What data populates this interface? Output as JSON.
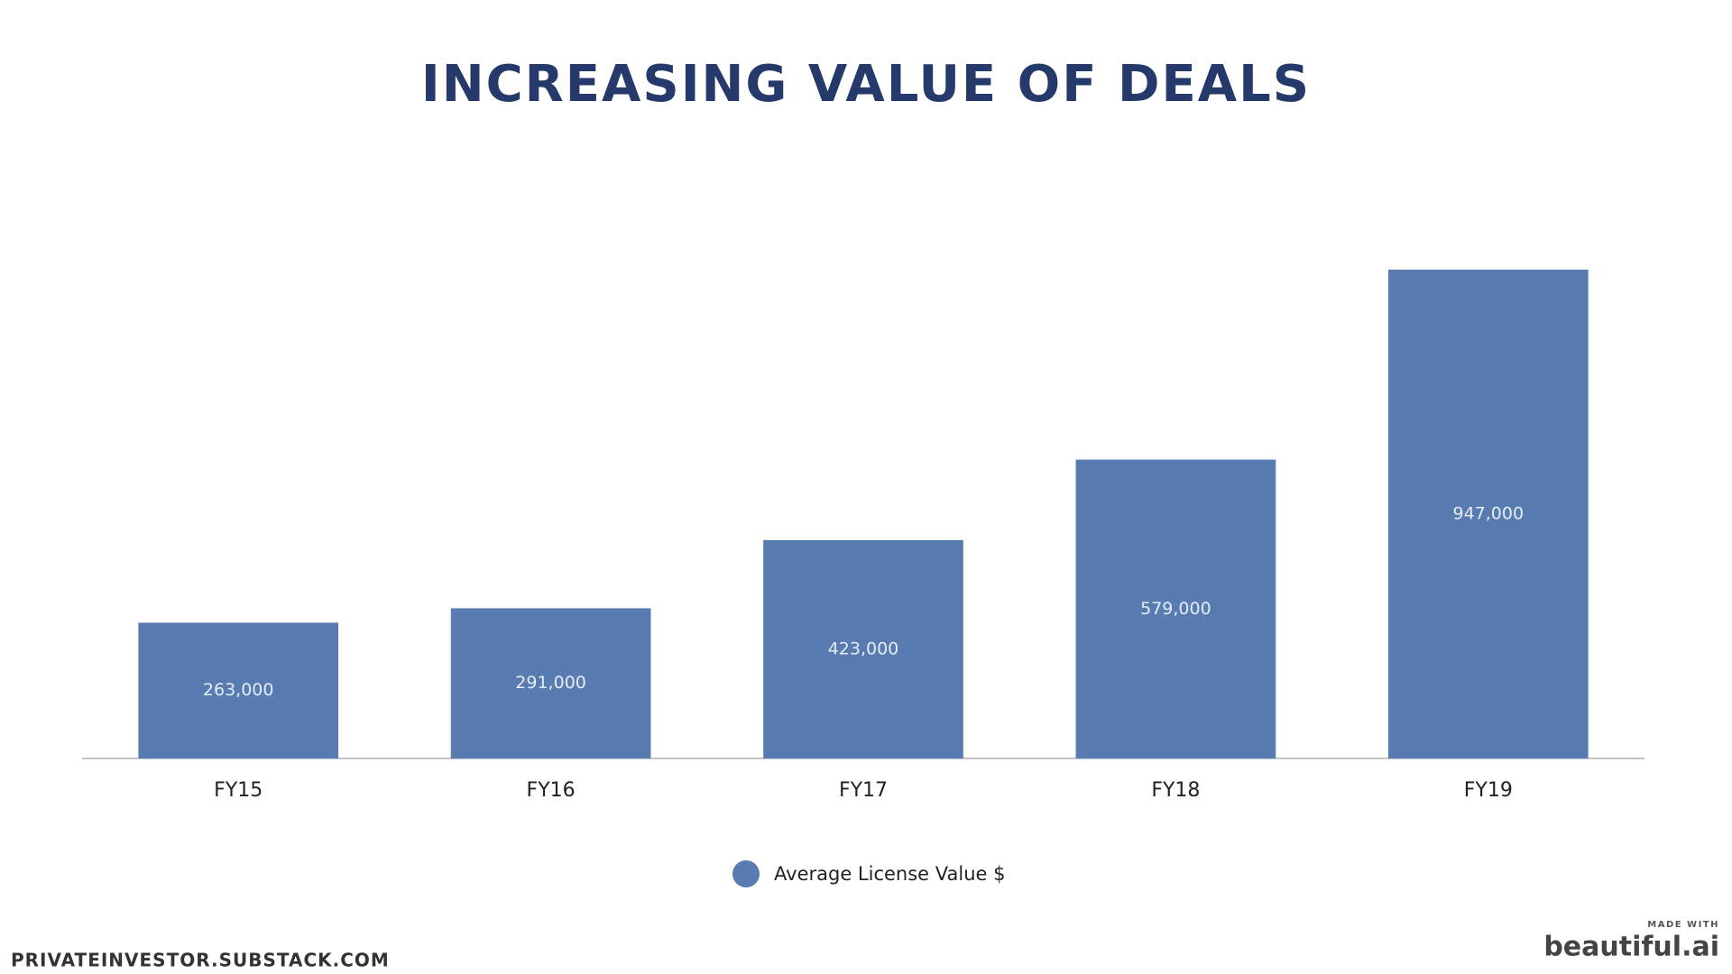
{
  "chart_data": {
    "type": "bar",
    "title": "INCREASING VALUE OF DEALS",
    "categories": [
      "FY15",
      "FY16",
      "FY17",
      "FY18",
      "FY19"
    ],
    "series": [
      {
        "name": "Average License Value $",
        "color": "#587cb2",
        "values": [
          263000,
          291000,
          423000,
          579000,
          947000
        ],
        "value_labels": [
          "263,000",
          "291,000",
          "423,000",
          "579,000",
          "947,000"
        ]
      }
    ],
    "legend": "bottom"
  },
  "footer": {
    "source": "PRIVATEINVESTOR.SUBSTACK.COM",
    "made_with": "MADE WITH",
    "brand": "beautiful.ai"
  }
}
